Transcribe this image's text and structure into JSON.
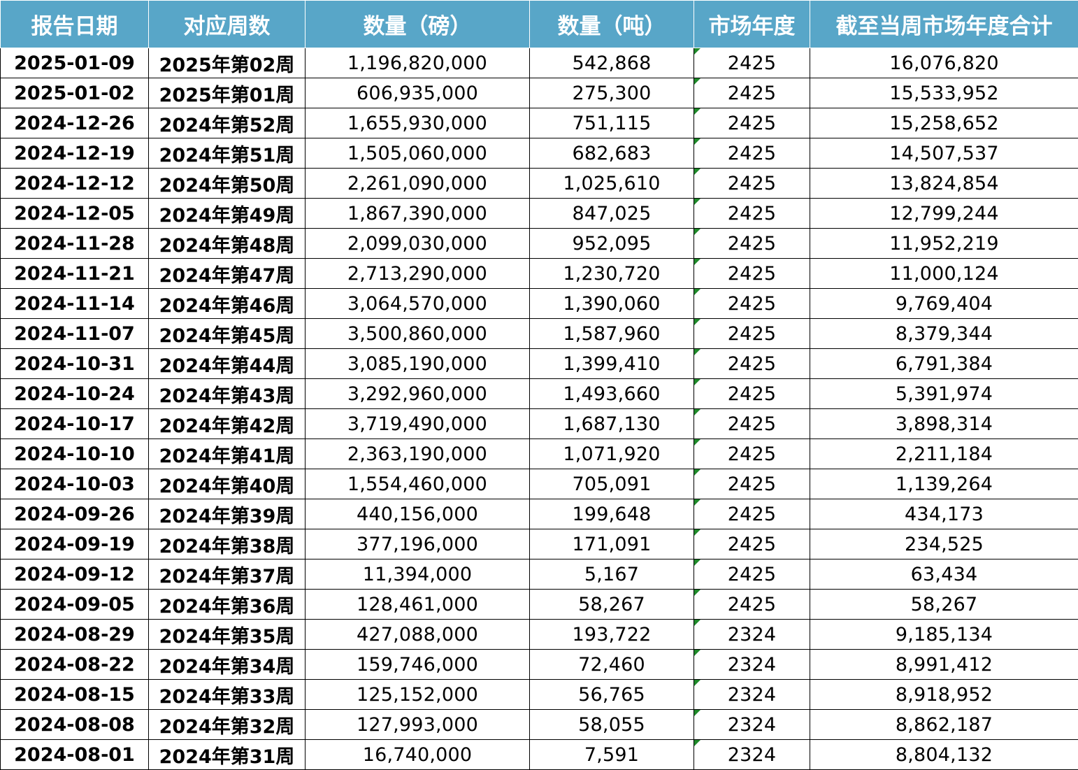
{
  "table": {
    "headers": [
      "报告日期",
      "对应周数",
      "数量（磅）",
      "数量（吨）",
      "市场年度",
      "截至当周市场年度合计"
    ],
    "rows": [
      [
        "2025-01-09",
        "2025年第02周",
        "1,196,820,000",
        "542,868",
        "2425",
        "16,076,820"
      ],
      [
        "2025-01-02",
        "2025年第01周",
        "606,935,000",
        "275,300",
        "2425",
        "15,533,952"
      ],
      [
        "2024-12-26",
        "2024年第52周",
        "1,655,930,000",
        "751,115",
        "2425",
        "15,258,652"
      ],
      [
        "2024-12-19",
        "2024年第51周",
        "1,505,060,000",
        "682,683",
        "2425",
        "14,507,537"
      ],
      [
        "2024-12-12",
        "2024年第50周",
        "2,261,090,000",
        "1,025,610",
        "2425",
        "13,824,854"
      ],
      [
        "2024-12-05",
        "2024年第49周",
        "1,867,390,000",
        "847,025",
        "2425",
        "12,799,244"
      ],
      [
        "2024-11-28",
        "2024年第48周",
        "2,099,030,000",
        "952,095",
        "2425",
        "11,952,219"
      ],
      [
        "2024-11-21",
        "2024年第47周",
        "2,713,290,000",
        "1,230,720",
        "2425",
        "11,000,124"
      ],
      [
        "2024-11-14",
        "2024年第46周",
        "3,064,570,000",
        "1,390,060",
        "2425",
        "9,769,404"
      ],
      [
        "2024-11-07",
        "2024年第45周",
        "3,500,860,000",
        "1,587,960",
        "2425",
        "8,379,344"
      ],
      [
        "2024-10-31",
        "2024年第44周",
        "3,085,190,000",
        "1,399,410",
        "2425",
        "6,791,384"
      ],
      [
        "2024-10-24",
        "2024年第43周",
        "3,292,960,000",
        "1,493,660",
        "2425",
        "5,391,974"
      ],
      [
        "2024-10-17",
        "2024年第42周",
        "3,719,490,000",
        "1,687,130",
        "2425",
        "3,898,314"
      ],
      [
        "2024-10-10",
        "2024年第41周",
        "2,363,190,000",
        "1,071,920",
        "2425",
        "2,211,184"
      ],
      [
        "2024-10-03",
        "2024年第40周",
        "1,554,460,000",
        "705,091",
        "2425",
        "1,139,264"
      ],
      [
        "2024-09-26",
        "2024年第39周",
        "440,156,000",
        "199,648",
        "2425",
        "434,173"
      ],
      [
        "2024-09-19",
        "2024年第38周",
        "377,196,000",
        "171,091",
        "2425",
        "234,525"
      ],
      [
        "2024-09-12",
        "2024年第37周",
        "11,394,000",
        "5,167",
        "2425",
        "63,434"
      ],
      [
        "2024-09-05",
        "2024年第36周",
        "128,461,000",
        "58,267",
        "2425",
        "58,267"
      ],
      [
        "2024-08-29",
        "2024年第35周",
        "427,088,000",
        "193,722",
        "2324",
        "9,185,134"
      ],
      [
        "2024-08-22",
        "2024年第34周",
        "159,746,000",
        "72,460",
        "2324",
        "8,991,412"
      ],
      [
        "2024-08-15",
        "2024年第33周",
        "125,152,000",
        "56,765",
        "2324",
        "8,918,952"
      ],
      [
        "2024-08-08",
        "2024年第32周",
        "127,993,000",
        "58,055",
        "2324",
        "8,862,187"
      ],
      [
        "2024-08-01",
        "2024年第31周",
        "16,740,000",
        "7,591",
        "2324",
        "8,804,132"
      ]
    ]
  },
  "colors": {
    "header_bg": "#58a6c8",
    "header_text": "#ffffff",
    "grid": "#000000",
    "number_stored_as_text_marker": "#1f8a2a"
  }
}
